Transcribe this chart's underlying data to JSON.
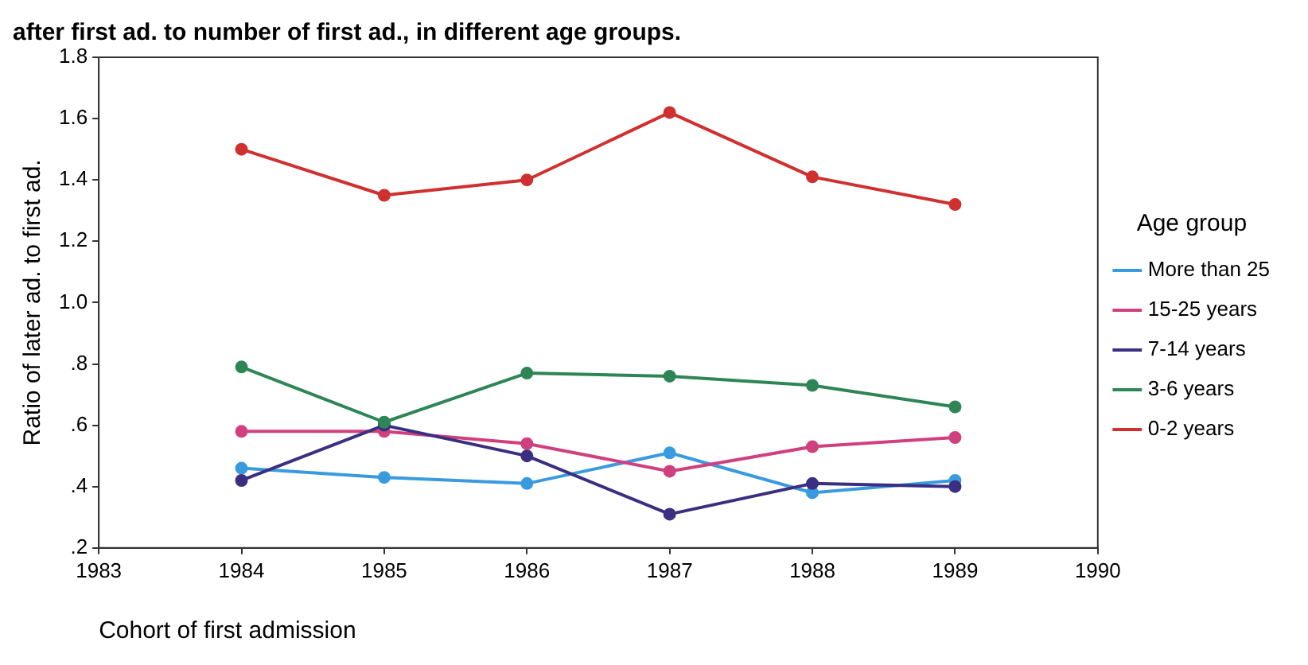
{
  "chart_data": {
    "type": "line",
    "title": "after first ad. to number of first ad., in different age groups.",
    "xlabel": "Cohort of first admission",
    "ylabel": "Ratio of later ad. to first ad.",
    "legend_title": "Age group",
    "x": [
      1984,
      1985,
      1986,
      1987,
      1988,
      1989
    ],
    "series": [
      {
        "name": "More than 25",
        "color": "#3a9ae0",
        "values": [
          0.46,
          0.43,
          0.41,
          0.51,
          0.38,
          0.42
        ]
      },
      {
        "name": "15-25 years",
        "color": "#d0407f",
        "values": [
          0.58,
          0.58,
          0.54,
          0.45,
          0.53,
          0.56
        ]
      },
      {
        "name": "7-14 years",
        "color": "#3a2f80",
        "values": [
          0.42,
          0.6,
          0.5,
          0.31,
          0.41,
          0.4
        ]
      },
      {
        "name": "3-6 years",
        "color": "#2e8555",
        "values": [
          0.79,
          0.61,
          0.77,
          0.76,
          0.73,
          0.66
        ]
      },
      {
        "name": "0-2 years",
        "color": "#d0302f",
        "values": [
          1.5,
          1.35,
          1.4,
          1.62,
          1.41,
          1.32
        ]
      }
    ],
    "xlim": [
      1983,
      1990
    ],
    "xticks": [
      1983,
      1984,
      1985,
      1986,
      1987,
      1988,
      1989,
      1990
    ],
    "ylim": [
      0.2,
      1.8
    ],
    "yticks": [
      {
        "value": 0.2,
        "label": ".2"
      },
      {
        "value": 0.4,
        "label": ".4"
      },
      {
        "value": 0.6,
        "label": ".6"
      },
      {
        "value": 0.8,
        "label": ".8"
      },
      {
        "value": 1.0,
        "label": "1.0"
      },
      {
        "value": 1.2,
        "label": "1.2"
      },
      {
        "value": 1.4,
        "label": "1.4"
      },
      {
        "value": 1.6,
        "label": "1.6"
      },
      {
        "value": 1.8,
        "label": "1.8"
      }
    ],
    "grid": false,
    "legend": "right",
    "marker": "circle",
    "line_style": "solid"
  }
}
